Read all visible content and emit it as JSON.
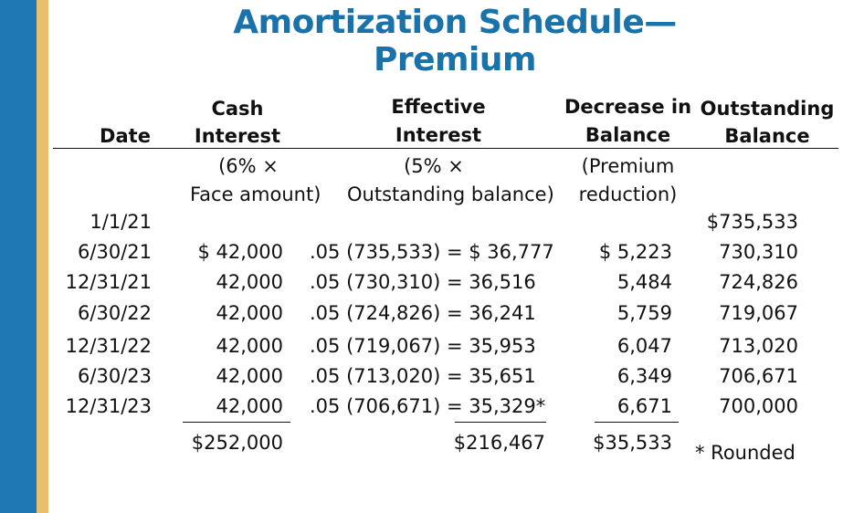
{
  "title": "Amortization Schedule—Premium",
  "headers": {
    "date": "Date",
    "cash_1": "Cash",
    "cash_2": "Interest",
    "eff_1": "Effective",
    "eff_2": "Interest",
    "dec_1": "Decrease in",
    "dec_2": "Balance",
    "out_1": "Outstanding",
    "out_2": "Balance"
  },
  "subheaders": {
    "cash_1": "(6% ×",
    "cash_2": "Face amount)",
    "eff_1": "(5% ×",
    "eff_2": "Outstanding balance)",
    "dec_1": "(Premium",
    "dec_2": "reduction)"
  },
  "rows": [
    {
      "date": "1/1/21",
      "cash": "",
      "effective": "",
      "decrease": "",
      "balance": "$735,533"
    },
    {
      "date": "6/30/21",
      "cash": "$ 42,000",
      "effective": ".05 (735,533) = $ 36,777",
      "decrease": "$ 5,223",
      "balance": "730,310"
    },
    {
      "date": "12/31/21",
      "cash": "42,000",
      "effective": ".05 (730,310) = 36,516",
      "decrease": "5,484",
      "balance": "724,826"
    },
    {
      "date": "6/30/22",
      "cash": "42,000",
      "effective": ".05 (724,826) = 36,241",
      "decrease": "5,759",
      "balance": "719,067"
    },
    {
      "date": "12/31/22",
      "cash": "42,000",
      "effective": ".05 (719,067) = 35,953",
      "decrease": "6,047",
      "balance": "713,020"
    },
    {
      "date": "6/30/23",
      "cash": "42,000",
      "effective": ".05 (713,020) = 35,651",
      "decrease": "6,349",
      "balance": "706,671"
    },
    {
      "date": "12/31/23",
      "cash": "42,000",
      "effective": ".05 (706,671) = 35,329*",
      "decrease": "6,671",
      "balance": "700,000"
    }
  ],
  "totals": {
    "cash": "$252,000",
    "effective": "$216,467",
    "decrease": "$35,533"
  },
  "footnote": "* Rounded",
  "colors": {
    "title": "#1a72ab",
    "sidebar_blue": "#1f78b4",
    "sidebar_gold": "#e6c06e"
  }
}
